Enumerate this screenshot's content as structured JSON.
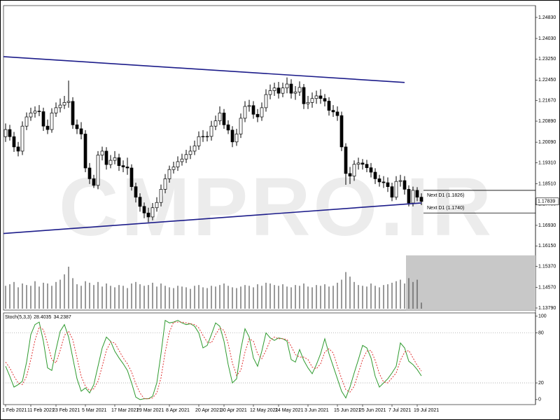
{
  "chart_data": [
    {
      "type": "candlestick",
      "watermark": "CMPRO.IR",
      "categories": [
        "1 Feb 2021",
        null,
        null,
        null,
        null,
        null,
        "11 Feb 2021",
        null,
        null,
        null,
        null,
        null,
        "23 Feb 2021",
        null,
        null,
        null,
        null,
        null,
        null,
        "5 Mar 2021",
        null,
        null,
        null,
        null,
        null,
        null,
        "17 Mar 2021",
        null,
        null,
        null,
        null,
        null,
        "29 Mar 2021",
        null,
        null,
        null,
        null,
        null,
        null,
        "8 Apr 2021",
        null,
        null,
        null,
        null,
        null,
        null,
        "20 Apr 2021",
        null,
        null,
        null,
        null,
        null,
        "30 Apr 2021",
        null,
        null,
        null,
        null,
        null,
        null,
        "12 May 2021",
        null,
        null,
        null,
        null,
        null,
        "24 May 2021",
        null,
        null,
        null,
        null,
        null,
        null,
        "3 Jun 2021",
        null,
        null,
        null,
        null,
        null,
        null,
        "15 Jun 2021",
        null,
        null,
        null,
        null,
        null,
        "25 Jun 2021",
        null,
        null,
        null,
        null,
        null,
        null,
        "7 Jul 2021",
        null,
        null,
        null,
        null,
        null,
        "19 Jul 2021",
        null
      ],
      "open": [
        1.203,
        1.2057,
        1.203,
        1.1991,
        1.1975,
        1.207,
        1.2105,
        1.212,
        1.2127,
        1.2125,
        1.207,
        1.2057,
        1.212,
        1.214,
        1.215,
        1.216,
        1.2164,
        1.2075,
        1.206,
        1.204,
        1.1911,
        1.187,
        1.1845,
        1.196,
        1.1975,
        1.1924,
        1.194,
        1.195,
        1.192,
        1.1915,
        1.1911,
        1.184,
        1.18,
        1.1765,
        1.174,
        1.1725,
        1.176,
        1.178,
        1.183,
        1.187,
        1.1905,
        1.1915,
        1.1935,
        1.1945,
        1.1962,
        1.1975,
        1.1995,
        1.203,
        1.2031,
        1.2031,
        1.207,
        1.209,
        1.212,
        1.2075,
        1.2055,
        1.201,
        1.204,
        1.21,
        1.2145,
        1.2148,
        1.2115,
        1.2105,
        1.214,
        1.219,
        1.2205,
        1.2215,
        1.2195,
        1.2215,
        1.223,
        1.2195,
        1.22,
        1.2217,
        1.2155,
        1.216,
        1.2175,
        1.2185,
        1.2175,
        1.2165,
        1.213,
        1.2124,
        1.211,
        1.1991,
        1.189,
        1.188,
        1.1925,
        1.193,
        1.1925,
        1.1912,
        1.1895,
        1.187,
        1.1858,
        1.1855,
        1.184,
        1.18,
        1.186,
        1.1863,
        1.183,
        1.1778,
        1.1826,
        1.18
      ],
      "high": [
        1.208,
        1.2075,
        1.2048,
        1.201,
        1.2088,
        1.2122,
        1.214,
        1.2145,
        1.215,
        1.214,
        1.2095,
        1.2138,
        1.216,
        1.2175,
        1.2185,
        1.2243,
        1.218,
        1.2095,
        1.2085,
        1.2055,
        1.193,
        1.1885,
        1.1975,
        1.1992,
        1.199,
        1.196,
        1.1975,
        1.1965,
        1.194,
        1.195,
        1.1925,
        1.1855,
        1.1815,
        1.178,
        1.176,
        1.1778,
        1.18,
        1.1848,
        1.1888,
        1.192,
        1.1935,
        1.1955,
        1.1965,
        1.198,
        1.1995,
        1.2015,
        1.205,
        1.2055,
        1.205,
        1.209,
        1.211,
        1.2145,
        1.2135,
        1.2092,
        1.207,
        1.206,
        1.2118,
        1.2165,
        1.217,
        1.2165,
        1.2135,
        1.216,
        1.221,
        1.2228,
        1.2235,
        1.2238,
        1.2235,
        1.2255,
        1.2248,
        1.2222,
        1.224,
        1.223,
        1.2185,
        1.2198,
        1.2205,
        1.221,
        1.2192,
        1.218,
        1.215,
        1.2145,
        1.2125,
        1.2005,
        1.1915,
        1.194,
        1.195,
        1.1945,
        1.1942,
        1.193,
        1.191,
        1.1885,
        1.188,
        1.1875,
        1.1855,
        1.188,
        1.1885,
        1.188,
        1.1845,
        1.184,
        1.1838,
        1.1815
      ],
      "low": [
        1.201,
        1.2015,
        1.1972,
        1.1955,
        1.196,
        1.2055,
        1.209,
        1.2102,
        1.2108,
        1.2052,
        1.204,
        1.2045,
        1.2105,
        1.2122,
        1.2135,
        1.214,
        1.206,
        1.204,
        1.202,
        1.1895,
        1.185,
        1.1835,
        1.183,
        1.194,
        1.1905,
        1.191,
        1.1925,
        1.19,
        1.1895,
        1.1885,
        1.1825,
        1.178,
        1.1745,
        1.172,
        1.1705,
        1.1712,
        1.1745,
        1.1765,
        1.1815,
        1.1855,
        1.189,
        1.19,
        1.192,
        1.193,
        1.1945,
        1.196,
        1.198,
        1.201,
        1.2012,
        1.2015,
        1.2055,
        1.2075,
        1.206,
        1.204,
        1.199,
        1.1995,
        1.2025,
        1.2085,
        1.2125,
        1.2098,
        1.2085,
        1.209,
        1.2125,
        1.2172,
        1.2185,
        1.2175,
        1.218,
        1.2195,
        1.2175,
        1.217,
        1.2185,
        1.2135,
        1.2135,
        1.214,
        1.2155,
        1.2155,
        1.2145,
        1.211,
        1.2105,
        1.209,
        1.1975,
        1.1847,
        1.185,
        1.1862,
        1.1905,
        1.1905,
        1.1895,
        1.1875,
        1.185,
        1.184,
        1.1835,
        1.182,
        1.1785,
        1.179,
        1.184,
        1.181,
        1.1765,
        1.1765,
        1.1785,
        1.177
      ],
      "close": [
        1.2057,
        1.203,
        1.1991,
        1.1975,
        1.207,
        1.2105,
        1.212,
        1.2127,
        1.2125,
        1.207,
        1.2057,
        1.212,
        1.214,
        1.215,
        1.216,
        1.2164,
        1.2075,
        1.206,
        1.204,
        1.1911,
        1.187,
        1.1845,
        1.196,
        1.1975,
        1.1924,
        1.194,
        1.195,
        1.192,
        1.1915,
        1.1911,
        1.184,
        1.18,
        1.1765,
        1.174,
        1.1725,
        1.176,
        1.178,
        1.183,
        1.187,
        1.1905,
        1.1915,
        1.1935,
        1.1945,
        1.1962,
        1.1975,
        1.1995,
        1.203,
        1.2031,
        1.2031,
        1.207,
        1.209,
        1.212,
        1.2075,
        1.2055,
        1.201,
        1.204,
        1.21,
        1.2145,
        1.2148,
        1.2115,
        1.2105,
        1.214,
        1.219,
        1.2205,
        1.2215,
        1.2195,
        1.2215,
        1.223,
        1.2195,
        1.22,
        1.2217,
        1.2155,
        1.216,
        1.2175,
        1.2185,
        1.2175,
        1.2165,
        1.213,
        1.2124,
        1.211,
        1.1991,
        1.189,
        1.188,
        1.1925,
        1.193,
        1.1925,
        1.1912,
        1.1895,
        1.187,
        1.1858,
        1.1855,
        1.184,
        1.18,
        1.186,
        1.1863,
        1.183,
        1.1778,
        1.1826,
        1.18,
        1.1784
      ],
      "volume": [
        30,
        32,
        35,
        28,
        33,
        31,
        30,
        36,
        29,
        34,
        33,
        30,
        35,
        38,
        45,
        55,
        40,
        32,
        30,
        36,
        34,
        31,
        35,
        29,
        33,
        30,
        28,
        31,
        30,
        27,
        33,
        35,
        32,
        30,
        31,
        34,
        29,
        33,
        30,
        28,
        27,
        30,
        29,
        28,
        26,
        30,
        31,
        28,
        27,
        30,
        29,
        31,
        33,
        30,
        28,
        27,
        29,
        31,
        30,
        28,
        32,
        30,
        34,
        33,
        31,
        30,
        32,
        29,
        28,
        31,
        30,
        33,
        29,
        28,
        31,
        30,
        32,
        29,
        30,
        34,
        38,
        48,
        42,
        35,
        31,
        30,
        29,
        33,
        30,
        28,
        31,
        32,
        34,
        36,
        38,
        33,
        40,
        35,
        38,
        8
      ],
      "ylim": [
        1.1371,
        1.2528
      ],
      "yticks": [
        {
          "value": 1.2483,
          "label": "1.24830"
        },
        {
          "value": 1.2403,
          "label": "1.24030"
        },
        {
          "value": 1.2325,
          "label": "1.23250"
        },
        {
          "value": 1.2245,
          "label": "1.22450"
        },
        {
          "value": 1.2167,
          "label": "1.21670"
        },
        {
          "value": 1.2089,
          "label": "1.20890"
        },
        {
          "value": 1.2009,
          "label": "1.20090"
        },
        {
          "value": 1.1931,
          "label": "1.19310"
        },
        {
          "value": 1.1851,
          "label": "1.18510"
        },
        {
          "value": 1.1773,
          "label": "1.17730"
        },
        {
          "value": 1.1693,
          "label": "1.16930"
        },
        {
          "value": 1.1615,
          "label": "1.16150"
        },
        {
          "value": 1.1537,
          "label": "1.15370"
        },
        {
          "value": 1.1457,
          "label": "1.14570"
        },
        {
          "value": 1.1379,
          "label": "1.13790"
        }
      ],
      "last_price": 1.17839,
      "levels": [
        {
          "value": 1.1826,
          "label": "Next D1 (1.1826)"
        },
        {
          "value": 1.174,
          "label": "Next D1 (1.1740)"
        }
      ],
      "trendlines": [
        {
          "start": [
            0,
            1.2334
          ],
          "end": [
            95,
            1.2236
          ]
        },
        {
          "start": [
            0,
            1.1662
          ],
          "end": [
            99,
            1.1778
          ]
        }
      ],
      "rectangle": {
        "start": 95,
        "top": 1.1579
      },
      "colors": {
        "up": "#ffffff",
        "down": "#000000",
        "outline": "#000000",
        "volume": "#555555",
        "trendline": "#1c1c8a",
        "rectangle": "#c8c8c8",
        "watermark": "#ececec"
      }
    },
    {
      "type": "line",
      "title": "Stoch(5,3,3)",
      "series": [
        {
          "color": "#2e9a2e",
          "dash": false,
          "values": [
            40,
            28,
            15,
            18,
            22,
            45,
            78,
            90,
            93,
            70,
            38,
            35,
            60,
            82,
            90,
            75,
            50,
            25,
            10,
            14,
            8,
            18,
            40,
            62,
            75,
            70,
            58,
            50,
            43,
            35,
            20,
            3,
            0,
            1,
            1,
            4,
            20,
            55,
            95,
            92,
            93,
            95,
            92,
            90,
            91,
            88,
            80,
            62,
            65,
            78,
            92,
            88,
            70,
            42,
            20,
            25,
            60,
            85,
            75,
            50,
            40,
            58,
            80,
            74,
            71,
            74,
            73,
            70,
            48,
            45,
            60,
            47,
            38,
            31,
            42,
            55,
            73,
            55,
            40,
            25,
            10,
            2,
            15,
            32,
            48,
            65,
            62,
            50,
            28,
            15,
            20,
            25,
            32,
            40,
            68,
            62,
            46,
            42,
            36,
            28.4035
          ]
        },
        {
          "color": "#e03030",
          "dash": true,
          "values": [
            45,
            38,
            28,
            20,
            18,
            28,
            48,
            71,
            87,
            84,
            67,
            48,
            44,
            59,
            77,
            82,
            72,
            50,
            28,
            16,
            11,
            13,
            22,
            40,
            59,
            69,
            68,
            59,
            50,
            43,
            33,
            19,
            8,
            1,
            1,
            2,
            8,
            26,
            57,
            81,
            93,
            93,
            93,
            92,
            91,
            90,
            86,
            77,
            69,
            68,
            78,
            86,
            83,
            67,
            44,
            29,
            35,
            57,
            73,
            70,
            55,
            49,
            59,
            71,
            75,
            73,
            73,
            72,
            64,
            54,
            51,
            51,
            48,
            39,
            37,
            43,
            57,
            61,
            56,
            40,
            25,
            12,
            9,
            16,
            32,
            48,
            58,
            59,
            47,
            31,
            21,
            20,
            26,
            32,
            47,
            57,
            59,
            50,
            41,
            34.2387
          ]
        }
      ],
      "ylim": [
        -6,
        104
      ],
      "yticks": [
        100,
        80,
        20,
        0
      ],
      "levels": [
        80,
        20
      ]
    }
  ]
}
